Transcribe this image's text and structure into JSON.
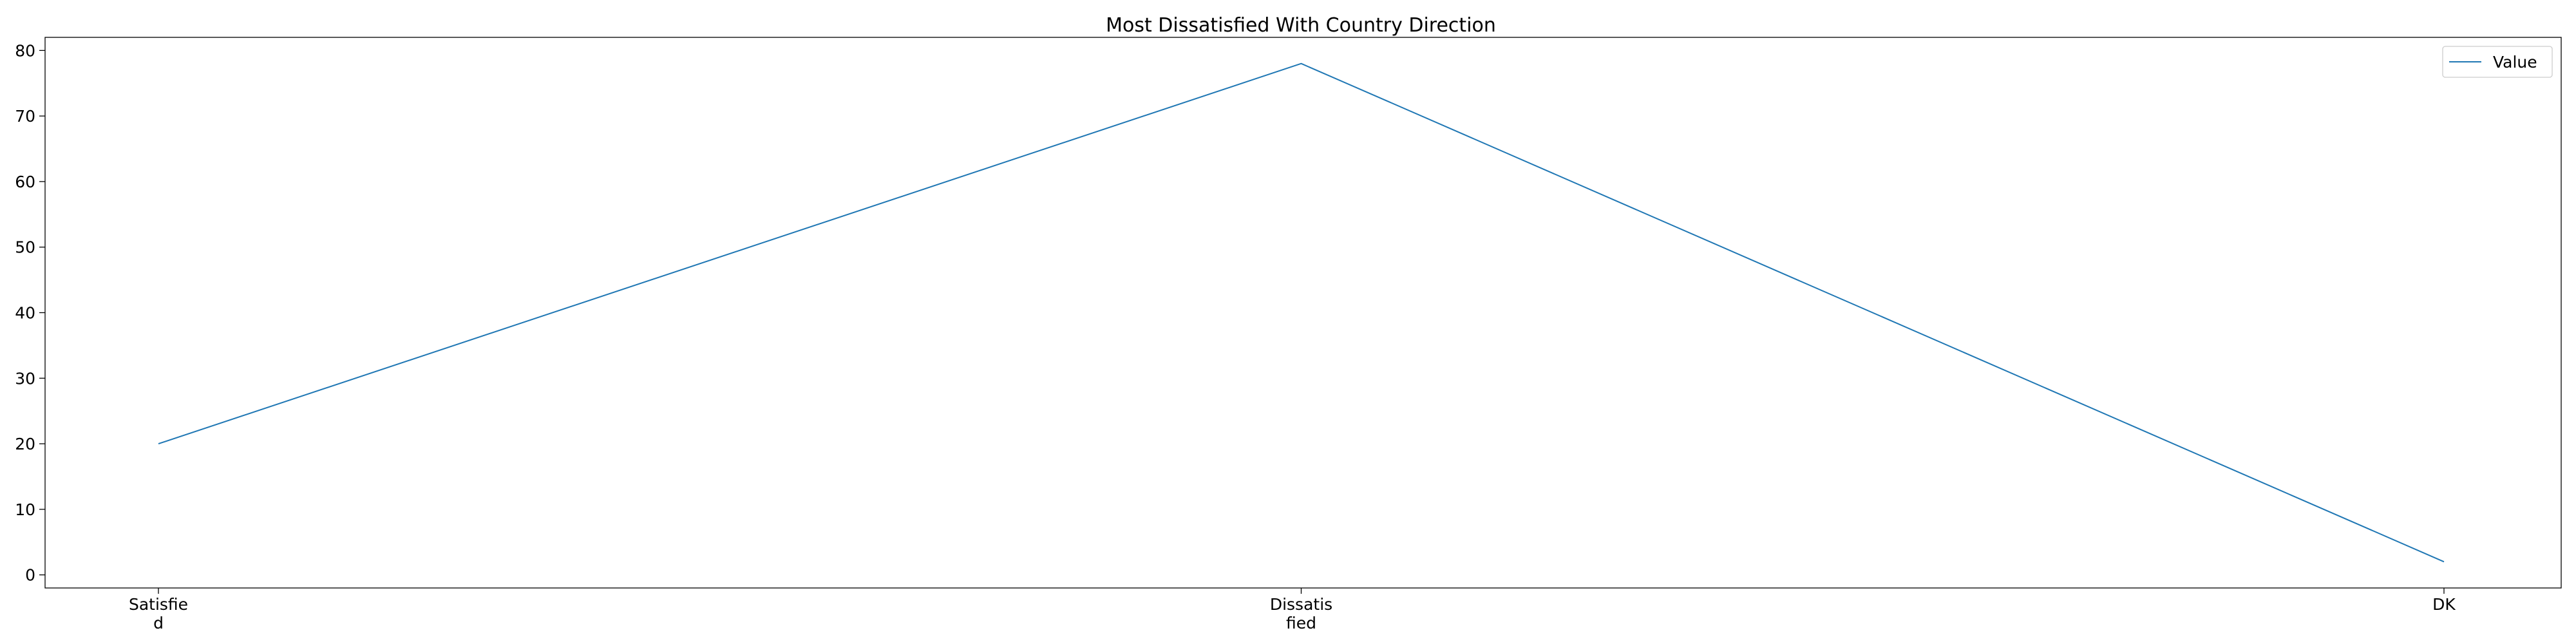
{
  "chart_data": {
    "type": "line",
    "title": "Most Dissatisfied With Country Direction",
    "xlabel": "",
    "ylabel": "",
    "categories": [
      "Satisfie\nd",
      "Dissatis\nfied",
      "DK"
    ],
    "series": [
      {
        "name": "Value",
        "values": [
          20,
          78,
          2
        ],
        "color": "#1f77b4"
      }
    ],
    "ylim": [
      -2,
      82
    ],
    "yticks": [
      0,
      10,
      20,
      30,
      40,
      50,
      60,
      70,
      80
    ],
    "grid": false,
    "legend_position": "top-right"
  }
}
